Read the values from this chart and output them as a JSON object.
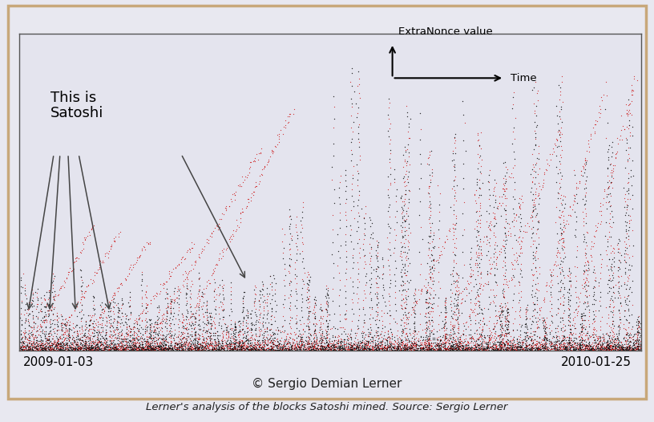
{
  "background_color": "#e8e8f0",
  "plot_bg_color": "#e4e4ee",
  "border_color": "#c8a87a",
  "copyright_text": "© Sergio Demian Lerner",
  "date_left": "2009-01-03",
  "date_right": "2010-01-25",
  "extranonce_label": "ExtraNonce value",
  "time_label": "Time",
  "satoshi_label": "This is\nSatoshi",
  "caption": "Lerner's analysis of the blocks Satoshi mined. Source: Sergio Lerner",
  "seed": 12345,
  "red_color": "#cc0000",
  "black_color": "#111111"
}
